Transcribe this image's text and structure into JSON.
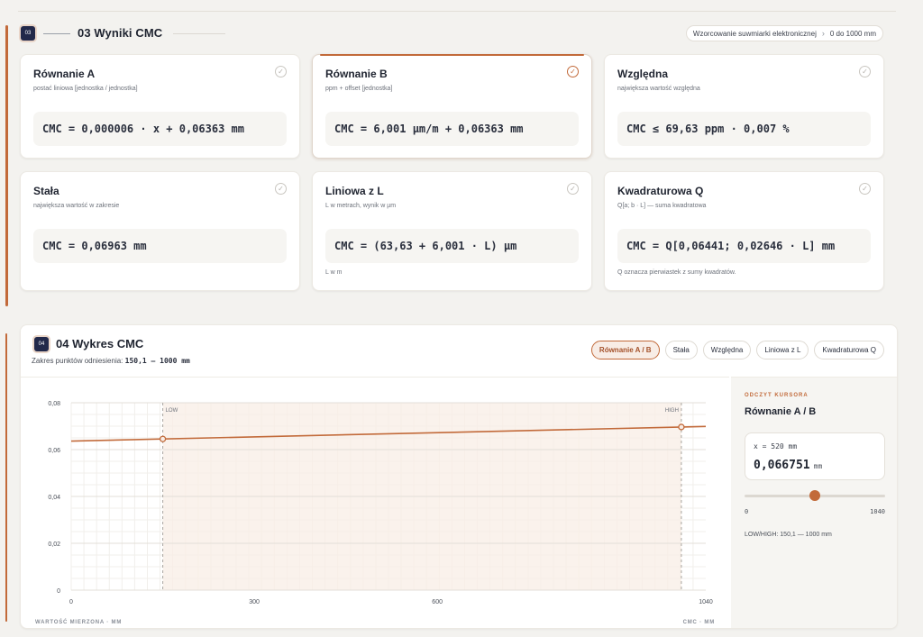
{
  "section3": {
    "badge": "03",
    "title": "03 Wyniki CMC",
    "breadcrumb": [
      "Wzorcowanie suwmiarki elektronicznej",
      "0 do 1000 mm"
    ],
    "cards": [
      {
        "title": "Równanie A",
        "subtitle": "postać liniowa [jednostka / jednostka]",
        "formula": "CMC = 0,000006 · x + 0,06363 mm",
        "footnote": "",
        "selected": false
      },
      {
        "title": "Równanie B",
        "subtitle": "ppm + offset [jednostka]",
        "formula": "CMC = 6,001 µm/m + 0,06363 mm",
        "footnote": "",
        "selected": true
      },
      {
        "title": "Względna",
        "subtitle": "największa wartość względna",
        "formula": "CMC ≤ 69,63 ppm · 0,007 %",
        "footnote": "",
        "selected": false
      },
      {
        "title": "Stała",
        "subtitle": "największa wartość w zakresie",
        "formula": "CMC = 0,06963 mm",
        "footnote": "",
        "selected": false
      },
      {
        "title": "Liniowa z L",
        "subtitle": "L w metrach, wynik w µm",
        "formula": "CMC = (63,63 + 6,001 · L) µm",
        "footnote": "L w m",
        "selected": false
      },
      {
        "title": "Kwadraturowa Q",
        "subtitle": "Q[a; b · L] — suma kwadratowa",
        "formula": "CMC = Q[0,06441; 0,02646 · L] mm",
        "footnote": "Q oznacza pierwiastek z sumy kwadratów.",
        "selected": false
      }
    ]
  },
  "section4": {
    "badge": "04",
    "title": "04 Wykres CMC",
    "range_label": "Zakres punktów odniesienia:",
    "range_value": "150,1 — 1000 mm",
    "tabs": [
      "Równanie A / B",
      "Stała",
      "Względna",
      "Liniowa z L",
      "Kwadraturowa Q"
    ],
    "active_tab": 0,
    "cursor": {
      "caption": "ODCZYT KURSORA",
      "equation": "Równanie A / B",
      "x_text": "x = 520 mm",
      "y_value": "0,066751",
      "y_unit": "mm",
      "slider_min": "0",
      "slider_max": "1040",
      "slider_value": 520,
      "lowhigh": "LOW/HIGH: 150,1 — 1000 mm"
    }
  },
  "colors": {
    "accent": "#c26a3a",
    "navy": "#22294a",
    "band": "#f8ede6"
  },
  "chart_data": {
    "type": "line",
    "x_label": "WARTOŚĆ MIERZONA · MM",
    "y_label": "CMC · MM",
    "xlim": [
      0,
      1040
    ],
    "ylim": [
      0,
      0.08
    ],
    "x_ticks": [
      "0",
      "300",
      "600",
      "1040"
    ],
    "x_tick_values": [
      0,
      300,
      600,
      1040
    ],
    "y_ticks": [
      "0",
      "0,02",
      "0,04",
      "0,06",
      "0,08"
    ],
    "y_tick_values": [
      0,
      0.02,
      0.04,
      0.06,
      0.08
    ],
    "grid": true,
    "low": {
      "x": 150.1,
      "label": "LOW"
    },
    "high": {
      "x": 1000,
      "label": "HIGH"
    },
    "series": [
      {
        "x": [
          0,
          1040
        ],
        "y": [
          0.06363,
          0.06987
        ]
      }
    ],
    "markers": [
      {
        "x": 150.1,
        "y": 0.06453
      },
      {
        "x": 1000,
        "y": 0.06963
      }
    ]
  }
}
